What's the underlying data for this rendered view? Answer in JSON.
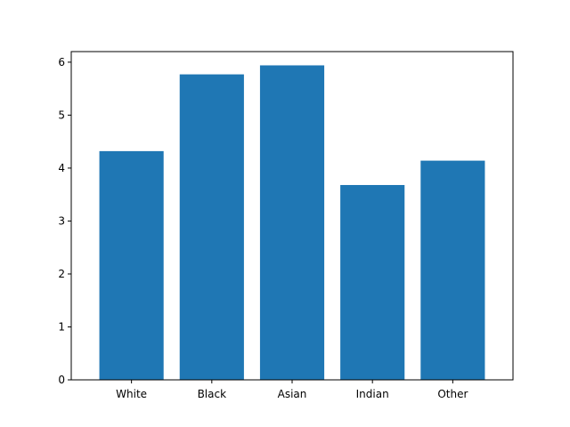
{
  "chart_data": {
    "type": "bar",
    "categories": [
      "White",
      "Black",
      "Asian",
      "Indian",
      "Other"
    ],
    "values": [
      4.32,
      5.77,
      5.94,
      3.68,
      4.14
    ],
    "ylim": [
      0,
      6.2
    ],
    "yticks": [
      0,
      1,
      2,
      3,
      4,
      5,
      6
    ],
    "title": "",
    "xlabel": "",
    "ylabel": "",
    "grid": false,
    "bar_color": "#1f77b4"
  }
}
